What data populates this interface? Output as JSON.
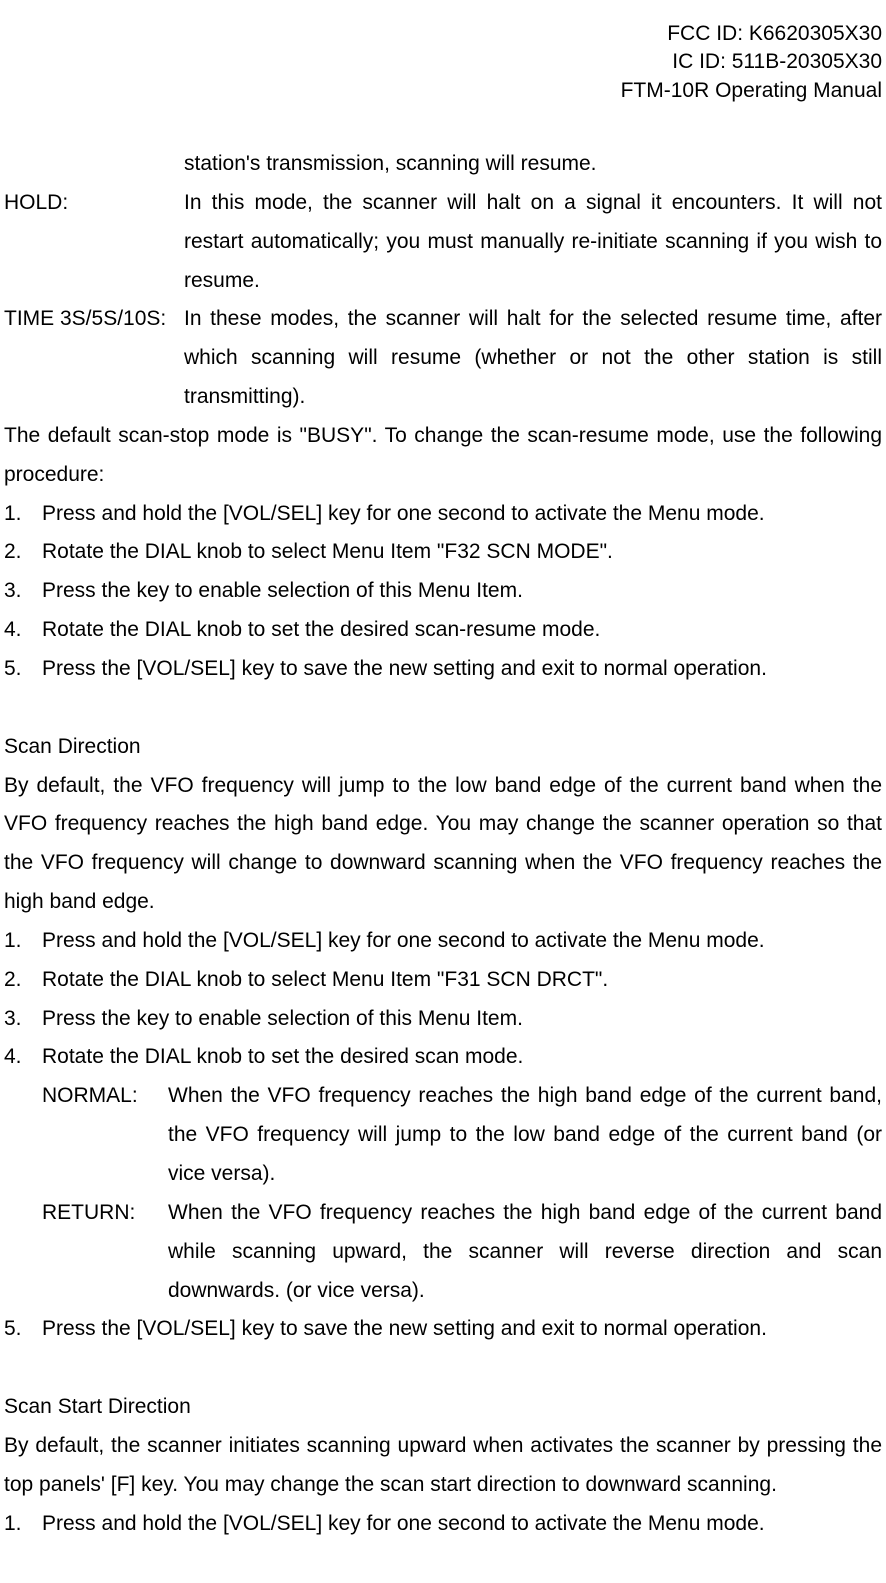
{
  "header": {
    "line1": "FCC ID: K6620305X30",
    "line2": "IC ID: 511B-20305X30",
    "line3": "FTM-10R Operating Manual"
  },
  "intro": {
    "continuation": "station's transmission, scanning will resume.",
    "hold_label": "HOLD:",
    "hold_text": "In this mode, the scanner will halt on a signal it encounters. It will not restart automatically; you must manually re-initiate scanning if you wish to resume.",
    "time_label": "TIME 3S/5S/10S:",
    "time_text": "In these modes, the scanner will halt for the selected resume time, after which scanning will resume (whether or not the other station is still transmitting).",
    "default_text": "The default scan-stop mode is \"BUSY\". To change the scan-resume mode, use the following procedure:",
    "steps": [
      "Press and hold the [VOL/SEL] key for one second to activate the Menu mode.",
      "Rotate the DIAL knob to select Menu Item \"F32 SCN MODE\".",
      "Press the    key to enable selection of this Menu Item.",
      "Rotate the DIAL knob to set the desired scan-resume mode.",
      "Press the [VOL/SEL] key to save the new setting and exit to normal operation."
    ]
  },
  "scan_direction": {
    "title": "Scan Direction",
    "intro": "By default, the VFO frequency will jump to the low band edge of the current band when the VFO frequency reaches the high band edge. You may change the scanner operation so that the VFO frequency will change to downward scanning when the VFO frequency reaches the high band edge.",
    "steps_before": [
      "Press and hold the [VOL/SEL] key for one second to activate the Menu mode.",
      "Rotate the DIAL knob to select Menu Item \"F31 SCN DRCT\".",
      "Press the    key to enable selection of this Menu Item.",
      "Rotate the DIAL knob to set the desired scan mode."
    ],
    "normal_label": "NORMAL:",
    "normal_text": "When the VFO frequency reaches the high band edge of the current band, the VFO frequency will jump to the low band edge of the current band (or vice versa).",
    "return_label": "RETURN:",
    "return_text": "When the VFO frequency reaches the high band edge of the current band while scanning upward, the scanner will reverse direction and scan downwards. (or vice versa).",
    "step5": "Press the [VOL/SEL] key to save the new setting and exit to normal operation."
  },
  "scan_start": {
    "title": "Scan Start Direction",
    "intro": "By default, the scanner initiates scanning upward when activates the scanner by pressing the top panels' [F] key.   You may change the scan start direction to downward scanning.",
    "step1": "Press and hold the [VOL/SEL] key for one second to activate the Menu mode."
  }
}
